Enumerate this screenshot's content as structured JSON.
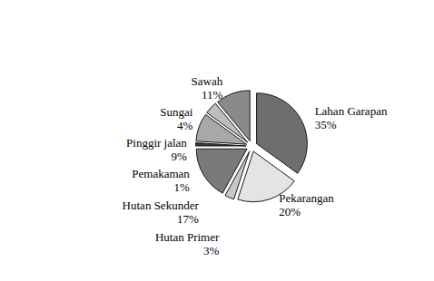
{
  "chart_data": {
    "type": "pie",
    "categories": [
      "Lahan Garapan",
      "Pekarangan",
      "Hutan Primer",
      "Hutan Sekunder",
      "Pemakaman",
      "Pinggir jalan",
      "Sungai",
      "Sawah"
    ],
    "values": [
      35,
      20,
      3,
      17,
      1,
      9,
      4,
      11
    ],
    "value_labels": [
      "35%",
      "20%",
      "3%",
      "17%",
      "1%",
      "9%",
      "4%",
      "11%"
    ],
    "colors": [
      "#6e6e6e",
      "#e4e4e4",
      "#c8c8c8",
      "#7a7a7a",
      "#3a3a3a",
      "#a8a8a8",
      "#bdbdbd",
      "#8a8a8a"
    ],
    "data_labels": true
  }
}
